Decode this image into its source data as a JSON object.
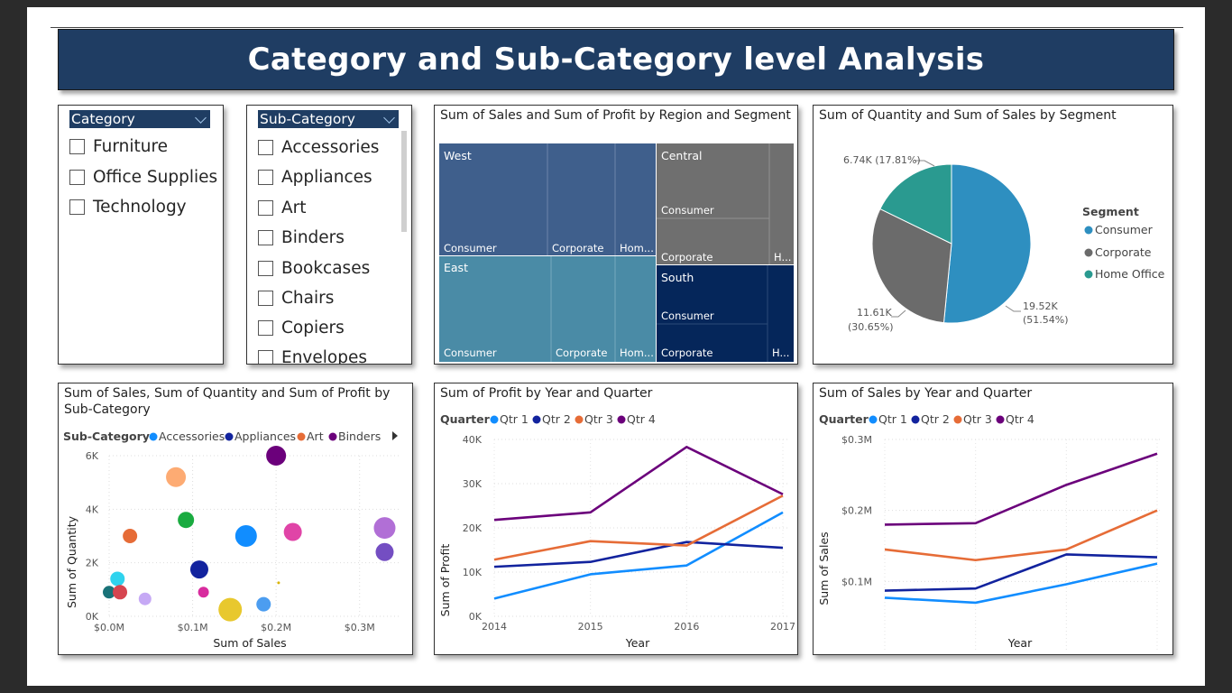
{
  "banner": {
    "title": "Category and Sub-Category level Analysis"
  },
  "category_slicer": {
    "header": "Category",
    "items": [
      "Furniture",
      "Office Supplies",
      "Technology"
    ]
  },
  "subcategory_slicer": {
    "header": "Sub-Category",
    "items": [
      "Accessories",
      "Appliances",
      "Art",
      "Binders",
      "Bookcases",
      "Chairs",
      "Copiers",
      "Envelopes"
    ]
  },
  "colors": {
    "banner": "#1f3d63",
    "qtr1": "#118dff",
    "qtr2": "#12239e",
    "qtr3": "#e66c37",
    "qtr4": "#6b007b",
    "consumer": "#2e8fc0",
    "corporate": "#6b6b6b",
    "home_office": "#2a9a90",
    "west": "#3f5f8c",
    "east": "#4a8ba6",
    "central": "#6f6f6f",
    "south": "#05265a"
  },
  "treemap": {
    "title": "Sum of Sales and Sum of Profit by Region and Segment",
    "regions": [
      {
        "name": "West",
        "segments": [
          "Consumer",
          "Corporate",
          "Hom..."
        ]
      },
      {
        "name": "East",
        "segments": [
          "Consumer",
          "Corporate",
          "Hom..."
        ]
      },
      {
        "name": "Central",
        "segments": [
          "Consumer",
          "Corporate",
          "H..."
        ]
      },
      {
        "name": "South",
        "segments": [
          "Consumer",
          "Corporate",
          "H..."
        ]
      }
    ]
  },
  "pie": {
    "title": "Sum of Quantity and Sum of Sales by Segment",
    "legend_title": "Segment",
    "slices": [
      {
        "name": "Consumer",
        "value": 19.52,
        "label": "19.52K",
        "pct": "(51.54%)"
      },
      {
        "name": "Corporate",
        "value": 11.61,
        "label": "11.61K",
        "pct": "(30.65%)"
      },
      {
        "name": "Home Office",
        "value": 6.74,
        "label": "6.74K (17.81%)",
        "pct": ""
      }
    ]
  },
  "chart_data": [
    {
      "type": "scatter",
      "title": "Sum of Sales, Sum of Quantity and Sum of Profit by Sub-Category",
      "legend_title": "Sub-Category",
      "legend_items": [
        "Accessories",
        "Appliances",
        "Art",
        "Binders"
      ],
      "xlabel": "Sum of Sales",
      "ylabel": "Sum of Quantity",
      "x_ticks": [
        "$0.0M",
        "$0.1M",
        "$0.2M",
        "$0.3M"
      ],
      "y_ticks": [
        "0K",
        "2K",
        "4K",
        "6K"
      ],
      "xlim": [
        0,
        0.35
      ],
      "ylim": [
        0,
        6000
      ],
      "points": [
        {
          "x": 0.08,
          "y": 5200,
          "r": 11,
          "color": "#fdab73"
        },
        {
          "x": 0.2,
          "y": 6000,
          "r": 11,
          "color": "#6b007b"
        },
        {
          "x": 0.092,
          "y": 3600,
          "r": 9,
          "color": "#1aab40"
        },
        {
          "x": 0.025,
          "y": 3000,
          "r": 8,
          "color": "#e66c37"
        },
        {
          "x": 0.164,
          "y": 3000,
          "r": 12,
          "color": "#118dff"
        },
        {
          "x": 0.22,
          "y": 3150,
          "r": 10,
          "color": "#e044a7"
        },
        {
          "x": 0.33,
          "y": 3300,
          "r": 12,
          "color": "#b16fd6"
        },
        {
          "x": 0.33,
          "y": 2400,
          "r": 10,
          "color": "#744ec2"
        },
        {
          "x": 0.108,
          "y": 1750,
          "r": 10,
          "color": "#12239e"
        },
        {
          "x": 0.01,
          "y": 1400,
          "r": 8,
          "color": "#2fd3ee"
        },
        {
          "x": 0.0,
          "y": 900,
          "r": 7,
          "color": "#197278"
        },
        {
          "x": 0.013,
          "y": 900,
          "r": 8,
          "color": "#d64550"
        },
        {
          "x": 0.043,
          "y": 650,
          "r": 7,
          "color": "#c6a9f5"
        },
        {
          "x": 0.113,
          "y": 900,
          "r": 6,
          "color": "#d82c9e"
        },
        {
          "x": 0.145,
          "y": 250,
          "r": 13,
          "color": "#e8c82e"
        },
        {
          "x": 0.185,
          "y": 450,
          "r": 8,
          "color": "#4c9df0"
        },
        {
          "x": 0.203,
          "y": 1250,
          "r": 1.5,
          "color": "#d9b300"
        }
      ]
    },
    {
      "type": "line",
      "title": "Sum of Profit by Year and Quarter",
      "legend_title": "Quarter",
      "xlabel": "Year",
      "ylabel": "Sum of Profit",
      "categories": [
        "2014",
        "2015",
        "2016",
        "2017"
      ],
      "y_ticks": [
        "0K",
        "10K",
        "20K",
        "30K",
        "40K"
      ],
      "ylim": [
        0,
        40000
      ],
      "series": [
        {
          "name": "Qtr 1",
          "values": [
            4000,
            9500,
            11500,
            23500
          ],
          "color": "#118dff"
        },
        {
          "name": "Qtr 2",
          "values": [
            11200,
            12300,
            16800,
            15500
          ],
          "color": "#12239e"
        },
        {
          "name": "Qtr 3",
          "values": [
            12800,
            17000,
            16000,
            27300
          ],
          "color": "#e66c37"
        },
        {
          "name": "Qtr 4",
          "values": [
            21800,
            23500,
            38300,
            27600
          ],
          "color": "#6b007b"
        }
      ]
    },
    {
      "type": "line",
      "title": "Sum of Sales by Year and Quarter",
      "legend_title": "Quarter",
      "xlabel": "Year",
      "ylabel": "Sum of Sales",
      "categories": [
        "2014",
        "2015",
        "2016",
        "2017"
      ],
      "y_ticks": [
        "$0.1M",
        "$0.2M",
        "$0.3M"
      ],
      "ylim": [
        0,
        0.3
      ],
      "series": [
        {
          "name": "Qtr 1",
          "values": [
            0.077,
            0.07,
            0.096,
            0.125
          ],
          "color": "#118dff"
        },
        {
          "name": "Qtr 2",
          "values": [
            0.087,
            0.09,
            0.138,
            0.134
          ],
          "color": "#12239e"
        },
        {
          "name": "Qtr 3",
          "values": [
            0.145,
            0.13,
            0.145,
            0.2
          ],
          "color": "#e66c37"
        },
        {
          "name": "Qtr 4",
          "values": [
            0.18,
            0.182,
            0.236,
            0.28
          ],
          "color": "#6b007b"
        }
      ]
    }
  ]
}
